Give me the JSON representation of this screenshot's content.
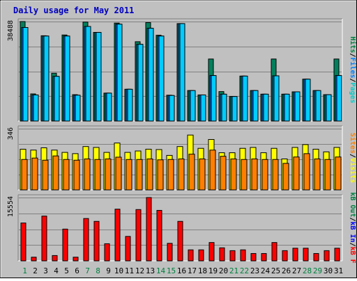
{
  "chart_data": [
    {
      "type": "bar",
      "title": "Daily usage for May 2011",
      "ymax_label": "38488",
      "ylim": [
        0,
        38488
      ],
      "categories": [
        "1",
        "2",
        "3",
        "4",
        "5",
        "6",
        "7",
        "8",
        "9",
        "10",
        "11",
        "12",
        "13",
        "14",
        "15",
        "16",
        "17",
        "18",
        "19",
        "20",
        "21",
        "22",
        "23",
        "24",
        "25",
        "26",
        "27",
        "28",
        "29",
        "30",
        "31"
      ],
      "weekend_days": [
        "1",
        "7",
        "8",
        "14",
        "15",
        "21",
        "22",
        "28",
        "29"
      ],
      "legend": [
        {
          "label": "Pages",
          "color": "#00cccc"
        },
        {
          "label": "Files",
          "color": "#0080ff"
        },
        {
          "label": "Hits",
          "color": "#008040"
        }
      ],
      "legend_separator": "/",
      "series": [
        {
          "name": "Hits",
          "color": "#00805c",
          "values": [
            38488,
            10500,
            33000,
            18500,
            33300,
            10200,
            38300,
            34300,
            10800,
            37900,
            12300,
            30700,
            38100,
            33200,
            10000,
            37700,
            11800,
            10100,
            24000,
            11400,
            9500,
            17400,
            11800,
            10400,
            24000,
            10400,
            11300,
            16200,
            11800,
            10200,
            24000
          ]
        },
        {
          "name": "Files",
          "color": "#0080ff",
          "values": [
            36200,
            10100,
            32900,
            17300,
            32900,
            10000,
            36600,
            34300,
            10800,
            37500,
            12300,
            29700,
            35900,
            32900,
            9900,
            37700,
            11800,
            10100,
            17600,
            10400,
            9500,
            17400,
            11800,
            10400,
            17500,
            10400,
            11300,
            16200,
            11800,
            10200,
            17600
          ]
        },
        {
          "name": "Pages",
          "color": "#00ccff",
          "values": [
            36200,
            10100,
            32900,
            17300,
            32900,
            10000,
            36600,
            34300,
            10800,
            37500,
            12300,
            29700,
            35900,
            32900,
            9900,
            37700,
            11800,
            10100,
            17600,
            10400,
            9500,
            17400,
            11800,
            10400,
            17500,
            10400,
            11300,
            16200,
            11800,
            10200,
            17600
          ]
        }
      ]
    },
    {
      "type": "bar",
      "ymax_label": "346",
      "ylim": [
        0,
        346
      ],
      "legend": [
        {
          "label": "Visits",
          "color": "#ffff00"
        },
        {
          "label": "Sites",
          "color": "#ff8000"
        }
      ],
      "legend_separator": "/",
      "series": [
        {
          "name": "Visits",
          "color": "#ffff00",
          "values": [
            230,
            225,
            238,
            225,
            212,
            205,
            245,
            240,
            212,
            265,
            212,
            220,
            230,
            228,
            195,
            245,
            310,
            235,
            285,
            210,
            210,
            235,
            240,
            210,
            235,
            175,
            240,
            256,
            230,
            215,
            240
          ]
        },
        {
          "name": "Sites",
          "color": "#ff8000",
          "values": [
            172,
            180,
            168,
            192,
            172,
            168,
            175,
            172,
            175,
            185,
            172,
            172,
            175,
            170,
            172,
            175,
            202,
            175,
            225,
            190,
            175,
            172,
            175,
            172,
            172,
            150,
            186,
            205,
            175,
            172,
            186
          ]
        }
      ]
    },
    {
      "type": "bar",
      "ymax_label": "15554",
      "ylim": [
        0,
        15554
      ],
      "legend": [
        {
          "label": "kB F",
          "color": "#ff0000"
        },
        {
          "label": "kB In",
          "color": "#0000ff"
        },
        {
          "label": "kB Out",
          "color": "#008040"
        }
      ],
      "legend_separator": "/",
      "series": [
        {
          "name": "kB F",
          "color": "#ff0000",
          "values": [
            9300,
            900,
            11000,
            1300,
            7800,
            900,
            10400,
            9700,
            4200,
            12700,
            6000,
            12600,
            15554,
            12400,
            4300,
            9700,
            2700,
            2700,
            4500,
            3200,
            2500,
            2700,
            1800,
            1800,
            4500,
            2500,
            3100,
            3100,
            1800,
            2500,
            3100
          ]
        }
      ]
    }
  ]
}
